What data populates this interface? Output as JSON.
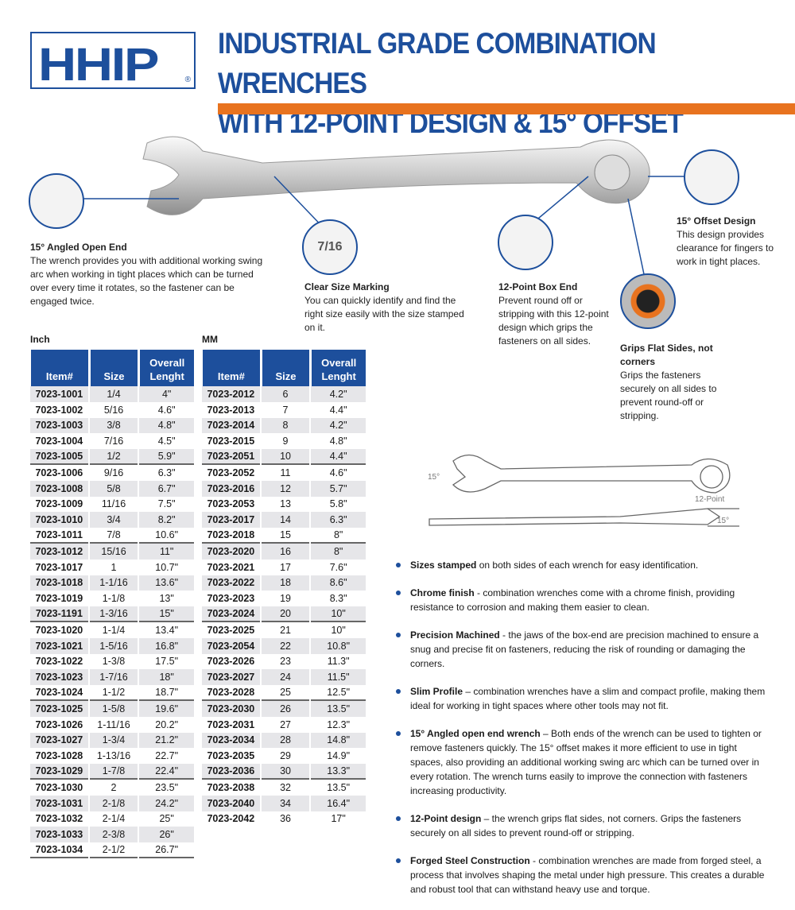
{
  "logo": {
    "text": "HHIP",
    "reg": "®"
  },
  "title": {
    "line1": "INDUSTRIAL GRADE COMBINATION WRENCHES",
    "line2": "WITH 12-POINT DESIGN & 15° OFFSET"
  },
  "colors": {
    "brand_blue": "#1d4f9c",
    "accent_orange": "#e8731f",
    "row_stripe": "#e6e6e9"
  },
  "callouts": {
    "open_end": {
      "title": "15° Angled Open End",
      "text": "The wrench provides you with additional working swing arc when working in tight places which can be turned over every time it rotates, so the fastener can be engaged twice."
    },
    "size_marking": {
      "title": "Clear Size Marking",
      "text": "You can quickly identify and find the right size easily with the size stamped on it.",
      "stamp": "7/16"
    },
    "box_end": {
      "title": "12-Point Box End",
      "text": "Prevent round off or stripping with this 12-point design which grips the fasteners on all sides."
    },
    "offset": {
      "title": "15° Offset Design",
      "text": "This design provides clearance for fingers to work in tight places."
    },
    "grips": {
      "title": "Grips Flat Sides, not corners",
      "text": "Grips the fasteners securely on all sides to prevent round-off or stripping."
    }
  },
  "diagram": {
    "angle_label": "15°",
    "point_label": "12-Point",
    "offset_label": "15°"
  },
  "inch": {
    "label": "Inch",
    "headers": [
      "Item#",
      "Size",
      "Overall Lenght"
    ],
    "rows": [
      [
        "7023-1001",
        "1/4",
        "4\""
      ],
      [
        "7023-1002",
        "5/16",
        "4.6\""
      ],
      [
        "7023-1003",
        "3/8",
        "4.8\""
      ],
      [
        "7023-1004",
        "7/16",
        "4.5\""
      ],
      [
        "7023-1005",
        "1/2",
        "5.9\""
      ],
      [
        "7023-1006",
        "9/16",
        "6.3\""
      ],
      [
        "7023-1008",
        "5/8",
        "6.7\""
      ],
      [
        "7023-1009",
        "11/16",
        "7.5\""
      ],
      [
        "7023-1010",
        "3/4",
        "8.2\""
      ],
      [
        "7023-1011",
        "7/8",
        "10.6\""
      ],
      [
        "7023-1012",
        "15/16",
        "11\""
      ],
      [
        "7023-1017",
        "1",
        "10.7\""
      ],
      [
        "7023-1018",
        "1-1/16",
        "13.6\""
      ],
      [
        "7023-1019",
        "1-1/8",
        "13\""
      ],
      [
        "7023-1191",
        "1-3/16",
        "15\""
      ],
      [
        "7023-1020",
        "1-1/4",
        "13.4\""
      ],
      [
        "7023-1021",
        "1-5/16",
        "16.8\""
      ],
      [
        "7023-1022",
        "1-3/8",
        "17.5\""
      ],
      [
        "7023-1023",
        "1-7/16",
        "18\""
      ],
      [
        "7023-1024",
        "1-1/2",
        "18.7\""
      ],
      [
        "7023-1025",
        "1-5/8",
        "19.6\""
      ],
      [
        "7023-1026",
        "1-11/16",
        "20.2\""
      ],
      [
        "7023-1027",
        "1-3/4",
        "21.2\""
      ],
      [
        "7023-1028",
        "1-13/16",
        "22.7\""
      ],
      [
        "7023-1029",
        "1-7/8",
        "22.4\""
      ],
      [
        "7023-1030",
        "2",
        "23.5\""
      ],
      [
        "7023-1031",
        "2-1/8",
        "24.2\""
      ],
      [
        "7023-1032",
        "2-1/4",
        "25\""
      ],
      [
        "7023-1033",
        "2-3/8",
        "26\""
      ],
      [
        "7023-1034",
        "2-1/2",
        "26.7\""
      ]
    ]
  },
  "mm": {
    "label": "MM",
    "headers": [
      "Item#",
      "Size",
      "Overall Lenght"
    ],
    "rows": [
      [
        "7023-2012",
        "6",
        "4.2\""
      ],
      [
        "7023-2013",
        "7",
        "4.4\""
      ],
      [
        "7023-2014",
        "8",
        "4.2\""
      ],
      [
        "7023-2015",
        "9",
        "4.8\""
      ],
      [
        "7023-2051",
        "10",
        "4.4\""
      ],
      [
        "7023-2052",
        "11",
        "4.6\""
      ],
      [
        "7023-2016",
        "12",
        "5.7\""
      ],
      [
        "7023-2053",
        "13",
        "5.8\""
      ],
      [
        "7023-2017",
        "14",
        "6.3\""
      ],
      [
        "7023-2018",
        "15",
        "8\""
      ],
      [
        "7023-2020",
        "16",
        "8\""
      ],
      [
        "7023-2021",
        "17",
        "7.6\""
      ],
      [
        "7023-2022",
        "18",
        "8.6\""
      ],
      [
        "7023-2023",
        "19",
        "8.3\""
      ],
      [
        "7023-2024",
        "20",
        "10\""
      ],
      [
        "7023-2025",
        "21",
        "10\""
      ],
      [
        "7023-2054",
        "22",
        "10.8\""
      ],
      [
        "7023-2026",
        "23",
        "11.3\""
      ],
      [
        "7023-2027",
        "24",
        "11.5\""
      ],
      [
        "7023-2028",
        "25",
        "12.5\""
      ],
      [
        "7023-2030",
        "26",
        "13.5\""
      ],
      [
        "7023-2031",
        "27",
        "12.3\""
      ],
      [
        "7023-2034",
        "28",
        "14.8\""
      ],
      [
        "7023-2035",
        "29",
        "14.9\""
      ],
      [
        "7023-2036",
        "30",
        "13.3\""
      ],
      [
        "7023-2038",
        "32",
        "13.5\""
      ],
      [
        "7023-2040",
        "34",
        "16.4\""
      ],
      [
        "7023-2042",
        "36",
        "17\""
      ]
    ]
  },
  "features": [
    {
      "title": "Sizes stamped",
      "text": " on both sides of each wrench for easy identification."
    },
    {
      "title": "Chrome finish",
      "text": " - combination wrenches come with a chrome finish, providing resistance to corrosion and making them easier to clean."
    },
    {
      "title": "Precision Machined",
      "text": " - the jaws of the box-end are precision machined to ensure a snug and precise fit on fasteners, reducing the risk of rounding or damaging the corners."
    },
    {
      "title": "Slim Profile",
      "text": " – combination wrenches have a slim and compact profile, making them ideal for working in tight spaces where other tools may not fit."
    },
    {
      "title": "15° Angled open end wrench",
      "text": " – Both ends of the wrench can be used to tighten or remove fasteners quickly.  The 15° offset makes it more efficient to use in tight spaces, also providing an additional working swing arc which can be turned over in every rotation.  The wrench turns easily to improve the connection with fasteners increasing productivity."
    },
    {
      "title": "12-Point design",
      "text": " – the wrench grips flat sides, not corners.  Grips the fasteners securely on all sides to prevent round-off or stripping."
    },
    {
      "title": "Forged Steel Construction",
      "text": " - combination wrenches are made from forged steel, a process that involves shaping the metal under high pressure. This creates a durable and robust tool that can withstand heavy use and torque."
    }
  ]
}
